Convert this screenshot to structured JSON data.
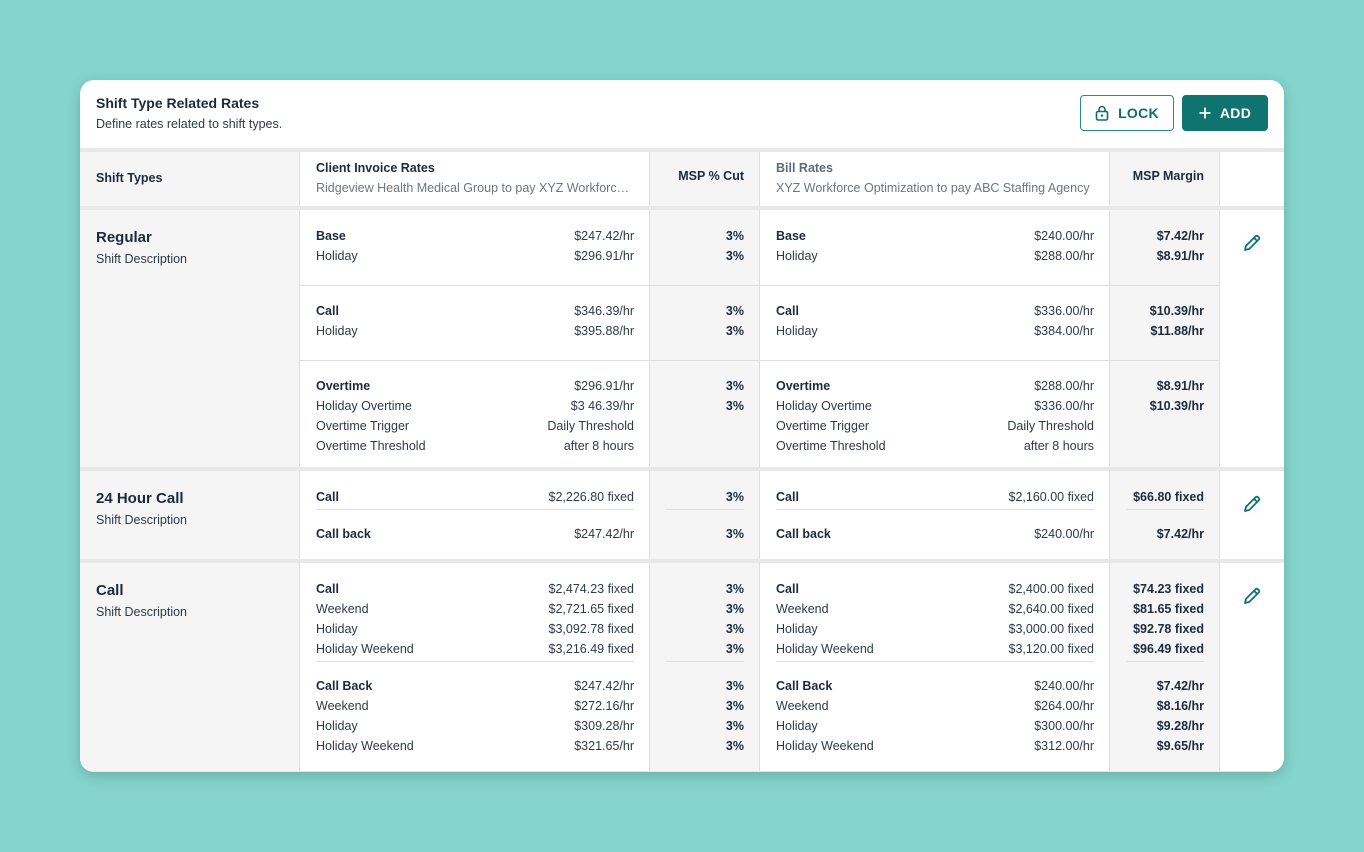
{
  "header": {
    "title": "Shift Type Related Rates",
    "subtitle": "Define rates related to shift types.",
    "lock_label": "LOCK",
    "add_label": "ADD"
  },
  "columns": {
    "shift_types": "Shift Types",
    "client_invoice": "Client Invoice Rates",
    "client_invoice_sub": "Ridgeview Health Medical Group to pay XYZ Workforce Optimization",
    "msp_cut": "MSP % Cut",
    "bill_rates": "Bill Rates",
    "bill_rates_sub": "XYZ Workforce Optimization to pay ABC Staffing Agency",
    "msp_margin": "MSP Margin"
  },
  "rows": [
    {
      "name": "Regular",
      "desc": "Shift Description",
      "groups": [
        {
          "client": [
            [
              "Base",
              "$247.42/hr"
            ],
            [
              "Holiday",
              "$296.91/hr"
            ]
          ],
          "cut": [
            "3%",
            "3%"
          ],
          "bill": [
            [
              "Base",
              "$240.00/hr"
            ],
            [
              "Holiday",
              "$288.00/hr"
            ]
          ],
          "margin": [
            "$7.42/hr",
            "$8.91/hr"
          ]
        },
        {
          "client": [
            [
              "Call",
              "$346.39/hr"
            ],
            [
              "Holiday",
              "$395.88/hr"
            ]
          ],
          "cut": [
            "3%",
            "3%"
          ],
          "bill": [
            [
              "Call",
              "$336.00/hr"
            ],
            [
              "Holiday",
              "$384.00/hr"
            ]
          ],
          "margin": [
            "$10.39/hr",
            "$11.88/hr"
          ]
        },
        {
          "client": [
            [
              "Overtime",
              "$296.91/hr"
            ],
            [
              "Holiday Overtime",
              "$3 46.39/hr"
            ],
            [
              "Overtime Trigger",
              "Daily Threshold"
            ],
            [
              "Overtime Threshold",
              "after 8 hours"
            ]
          ],
          "cut": [
            "3%",
            "3%"
          ],
          "bill": [
            [
              "Overtime",
              "$288.00/hr"
            ],
            [
              "Holiday Overtime",
              "$336.00/hr"
            ],
            [
              "Overtime Trigger",
              "Daily Threshold"
            ],
            [
              "Overtime Threshold",
              "after 8 hours"
            ]
          ],
          "margin": [
            "$8.91/hr",
            "$10.39/hr"
          ]
        }
      ]
    },
    {
      "name": "24 Hour Call",
      "desc": "Shift Description",
      "groups": [
        {
          "client": [
            [
              "Call",
              "$2,226.80 fixed"
            ]
          ],
          "cut": [
            "3%"
          ],
          "bill": [
            [
              "Call",
              "$2,160.00 fixed"
            ]
          ],
          "margin": [
            "$66.80 fixed"
          ]
        },
        {
          "client": [
            [
              "Call back",
              "$247.42/hr"
            ]
          ],
          "cut": [
            "3%"
          ],
          "bill": [
            [
              "Call back",
              "$240.00/hr"
            ]
          ],
          "margin": [
            "$7.42/hr"
          ]
        }
      ]
    },
    {
      "name": "Call",
      "desc": "Shift Description",
      "groups": [
        {
          "client": [
            [
              "Call",
              "$2,474.23 fixed"
            ],
            [
              "Weekend",
              "$2,721.65 fixed"
            ],
            [
              "Holiday",
              "$3,092.78 fixed"
            ],
            [
              "Holiday Weekend",
              "$3,216.49 fixed"
            ]
          ],
          "cut": [
            "3%",
            "3%",
            "3%",
            "3%"
          ],
          "bill": [
            [
              "Call",
              "$2,400.00 fixed"
            ],
            [
              "Weekend",
              "$2,640.00 fixed"
            ],
            [
              "Holiday",
              "$3,000.00 fixed"
            ],
            [
              "Holiday Weekend",
              "$3,120.00 fixed"
            ]
          ],
          "margin": [
            "$74.23 fixed",
            "$81.65 fixed",
            "$92.78 fixed",
            "$96.49 fixed"
          ]
        },
        {
          "client": [
            [
              "Call Back",
              "$247.42/hr"
            ],
            [
              "Weekend",
              "$272.16/hr"
            ],
            [
              "Holiday",
              "$309.28/hr"
            ],
            [
              "Holiday Weekend",
              "$321.65/hr"
            ]
          ],
          "cut": [
            "3%",
            "3%",
            "3%",
            "3%"
          ],
          "bill": [
            [
              "Call Back",
              "$240.00/hr"
            ],
            [
              "Weekend",
              "$264.00/hr"
            ],
            [
              "Holiday",
              "$300.00/hr"
            ],
            [
              "Holiday Weekend",
              "$312.00/hr"
            ]
          ],
          "margin": [
            "$7.42/hr",
            "$8.16/hr",
            "$9.28/hr",
            "$9.65/hr"
          ]
        }
      ]
    }
  ],
  "icons": {
    "lock": "lock-icon",
    "add": "plus-icon",
    "edit": "pencil-icon"
  },
  "colors": {
    "accent": "#0f7470",
    "background": "#85d4ce"
  }
}
